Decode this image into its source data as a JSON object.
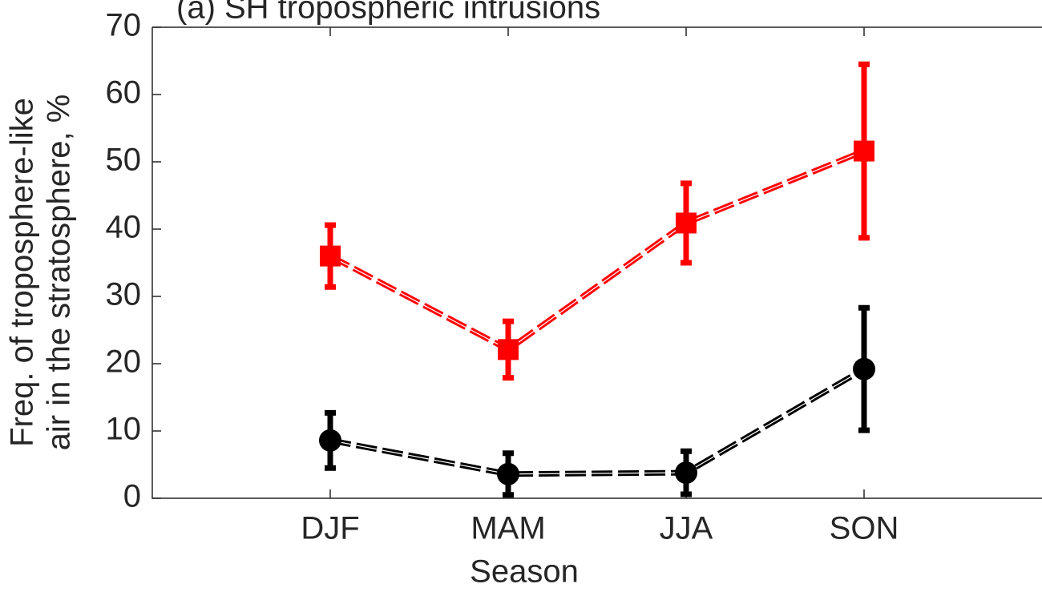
{
  "chart_data": {
    "type": "line",
    "title": "(a) SH tropospheric intrusions",
    "xlabel": "Season",
    "ylabel": [
      "Freq. of troposphere-like",
      "air in the stratosphere, %"
    ],
    "categories": [
      "DJF",
      "MAM",
      "JJA",
      "SON"
    ],
    "series": [
      {
        "color": "#ff0000",
        "marker": "square",
        "values": [
          36.0,
          22.1,
          40.9,
          51.6
        ],
        "errors": [
          4.6,
          4.2,
          5.9,
          12.9
        ]
      },
      {
        "color": "#000000",
        "marker": "circle",
        "values": [
          8.6,
          3.6,
          3.8,
          19.2
        ],
        "errors": [
          4.1,
          3.1,
          3.2,
          9.1
        ]
      }
    ],
    "ylim": [
      0,
      70
    ],
    "yticks": [
      0,
      10,
      20,
      30,
      40,
      50,
      60,
      70
    ],
    "grid": false
  }
}
